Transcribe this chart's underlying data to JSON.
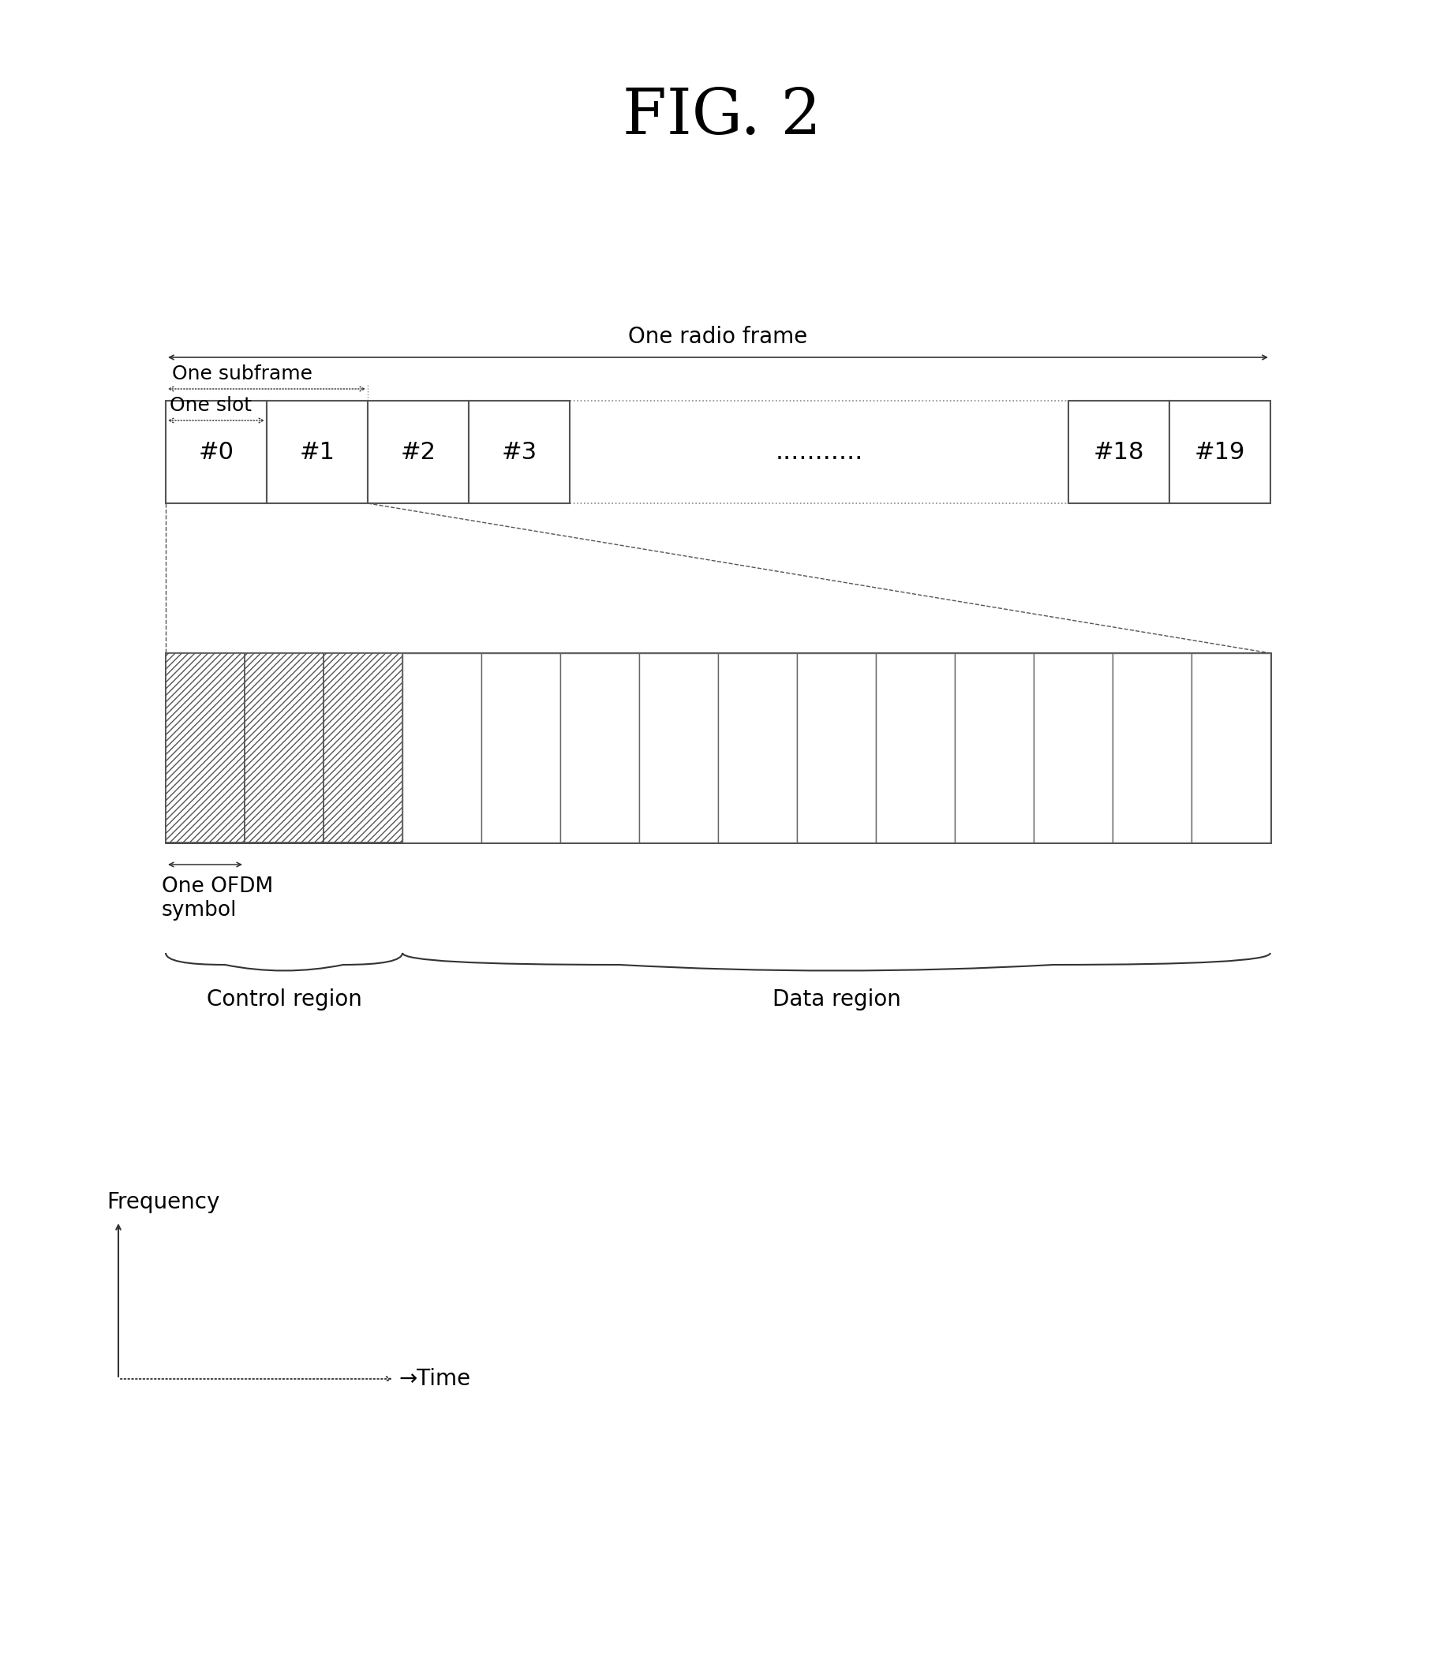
{
  "title": "FIG. 2",
  "title_fontsize": 58,
  "bg_color": "#ffffff",
  "text_color": "#000000",
  "radio_frame_label": "One radio frame",
  "subframe_label": "One subframe",
  "slot_label": "One slot",
  "ofdm_label": "One OFDM\nsymbol",
  "control_label": "Control region",
  "data_label": "Data region",
  "frequency_label": "Frequency",
  "time_label": "→Time",
  "slots": [
    "#0",
    "#1",
    "#2",
    "#3",
    "...........",
    "#18",
    "#19"
  ],
  "slot_font_size": 22,
  "annotation_font_size": 20,
  "axis_label_font_size": 20,
  "fig_w": 18.3,
  "fig_h": 20.98
}
